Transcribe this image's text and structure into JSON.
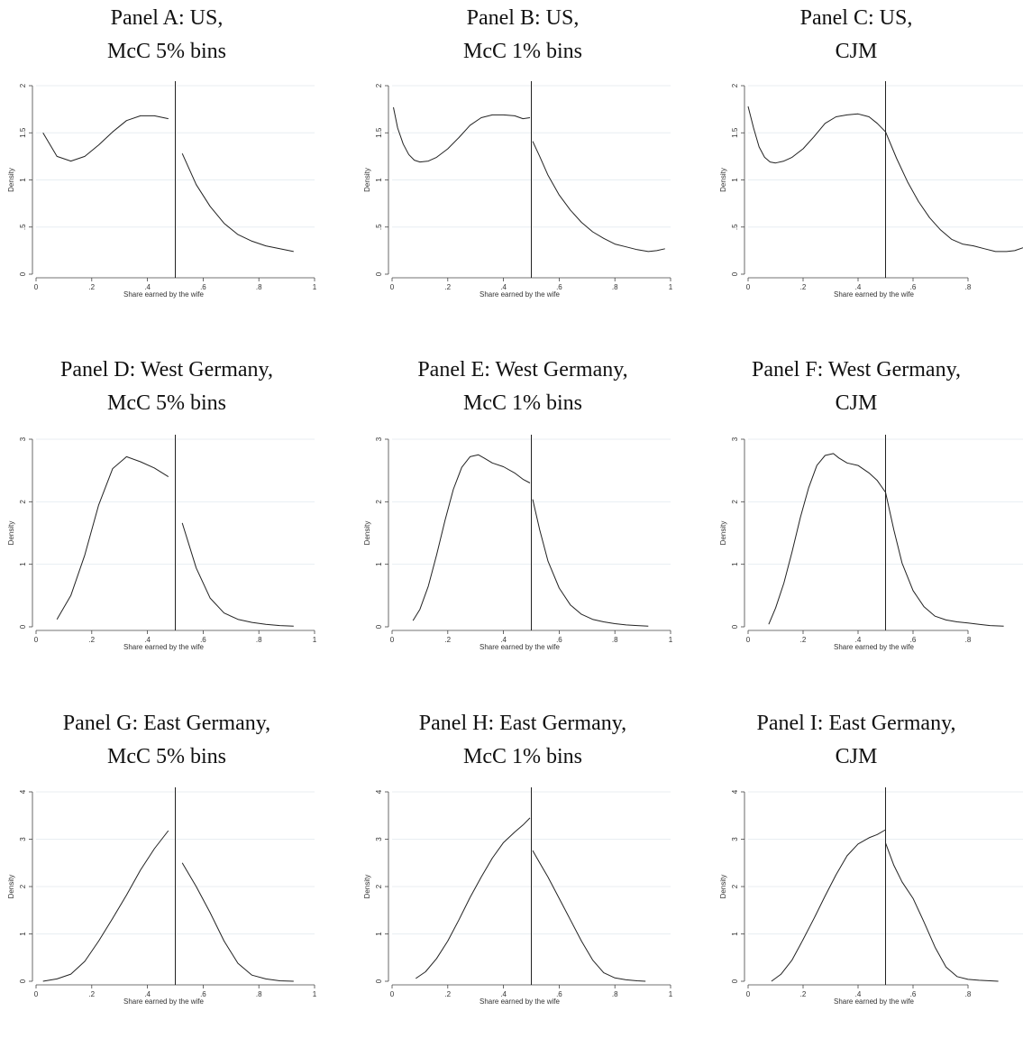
{
  "panels": [
    {
      "title_line1": "Panel A: US,",
      "title_line2": "McC 5% bins"
    },
    {
      "title_line1": "Panel B: US,",
      "title_line2": "McC 1% bins"
    },
    {
      "title_line1": "Panel C: US,",
      "title_line2": "CJM"
    },
    {
      "title_line1": "Panel D: West Germany,",
      "title_line2": "McC 5% bins"
    },
    {
      "title_line1": "Panel E: West Germany,",
      "title_line2": "McC 1% bins"
    },
    {
      "title_line1": "Panel F: West Germany,",
      "title_line2": "CJM"
    },
    {
      "title_line1": "Panel G: East Germany,",
      "title_line2": "McC 5% bins"
    },
    {
      "title_line1": "Panel H: East Germany,",
      "title_line2": "McC 1% bins"
    },
    {
      "title_line1": "Panel I: East Germany,",
      "title_line2": "CJM"
    }
  ],
  "chart_data": [
    {
      "type": "line",
      "title": "Panel A: US, McC 5% bins",
      "xlabel": "Share earned by the wife",
      "ylabel": "Density",
      "xlim": [
        0,
        1
      ],
      "ylim": [
        0,
        2
      ],
      "xticks": [
        "0",
        ".2",
        ".4",
        ".6",
        ".8",
        "1"
      ],
      "yticks": [
        "0",
        ".5",
        "1",
        "1.5",
        "2"
      ],
      "vline": 0.5,
      "grid": true,
      "series": [
        {
          "x": [
            0.025,
            0.075,
            0.125,
            0.175,
            0.225,
            0.275,
            0.325,
            0.375,
            0.425,
            0.475
          ],
          "y": [
            1.5,
            1.25,
            1.2,
            1.25,
            1.37,
            1.51,
            1.63,
            1.68,
            1.68,
            1.65
          ]
        },
        {
          "x": [
            0.525,
            0.575,
            0.625,
            0.675,
            0.725,
            0.775,
            0.825,
            0.875,
            0.925
          ],
          "y": [
            1.28,
            0.95,
            0.72,
            0.54,
            0.42,
            0.35,
            0.3,
            0.27,
            0.24
          ]
        }
      ]
    },
    {
      "type": "line",
      "title": "Panel B: US, McC 1% bins",
      "xlabel": "Share earned by the wife",
      "ylabel": "Density",
      "xlim": [
        0,
        1
      ],
      "ylim": [
        0,
        2
      ],
      "xticks": [
        "0",
        ".2",
        ".4",
        ".6",
        ".8",
        "1"
      ],
      "yticks": [
        "0",
        ".5",
        "1",
        "1.5",
        "2"
      ],
      "vline": 0.5,
      "grid": true,
      "series": [
        {
          "x": [
            0.005,
            0.02,
            0.04,
            0.06,
            0.08,
            0.1,
            0.13,
            0.16,
            0.2,
            0.24,
            0.28,
            0.32,
            0.36,
            0.4,
            0.44,
            0.47,
            0.495
          ],
          "y": [
            1.77,
            1.55,
            1.38,
            1.27,
            1.21,
            1.19,
            1.2,
            1.24,
            1.33,
            1.45,
            1.58,
            1.66,
            1.69,
            1.69,
            1.68,
            1.65,
            1.66
          ]
        },
        {
          "x": [
            0.505,
            0.53,
            0.56,
            0.6,
            0.64,
            0.68,
            0.72,
            0.76,
            0.8,
            0.84,
            0.88,
            0.92,
            0.95,
            0.98
          ],
          "y": [
            1.41,
            1.25,
            1.05,
            0.84,
            0.68,
            0.55,
            0.45,
            0.38,
            0.32,
            0.29,
            0.26,
            0.24,
            0.25,
            0.27
          ]
        }
      ]
    },
    {
      "type": "line",
      "title": "Panel C: US, CJM",
      "xlabel": "Share earned by the wife",
      "ylabel": "Density",
      "xlim": [
        0,
        1
      ],
      "ylim": [
        0,
        2
      ],
      "xticks": [
        "0",
        ".2",
        ".4",
        ".6",
        ".8"
      ],
      "yticks": [
        "0",
        ".5",
        "1",
        "1.5",
        "2"
      ],
      "vline": 0.5,
      "grid": true,
      "series": [
        {
          "x": [
            0.0,
            0.02,
            0.04,
            0.06,
            0.08,
            0.1,
            0.13,
            0.16,
            0.2,
            0.24,
            0.28,
            0.32,
            0.36,
            0.4,
            0.44,
            0.47,
            0.5
          ],
          "y": [
            1.78,
            1.55,
            1.35,
            1.24,
            1.19,
            1.18,
            1.2,
            1.24,
            1.33,
            1.46,
            1.6,
            1.67,
            1.69,
            1.7,
            1.67,
            1.6,
            1.51
          ]
        },
        {
          "x": [
            0.5,
            0.54,
            0.58,
            0.62,
            0.66,
            0.7,
            0.74,
            0.78,
            0.82,
            0.86,
            0.9,
            0.94,
            0.97,
            1.0
          ],
          "y": [
            1.51,
            1.23,
            0.98,
            0.77,
            0.6,
            0.47,
            0.37,
            0.32,
            0.3,
            0.27,
            0.24,
            0.24,
            0.25,
            0.28
          ]
        }
      ]
    },
    {
      "type": "line",
      "title": "Panel D: West Germany, McC 5% bins",
      "xlabel": "Share earned by the wife",
      "ylabel": "Density",
      "xlim": [
        0,
        1
      ],
      "ylim": [
        0,
        3
      ],
      "xticks": [
        "0",
        ".2",
        ".4",
        ".6",
        ".8",
        "1"
      ],
      "yticks": [
        "0",
        "1",
        "2",
        "3"
      ],
      "vline": 0.5,
      "grid": true,
      "series": [
        {
          "x": [
            0.075,
            0.125,
            0.175,
            0.225,
            0.275,
            0.325,
            0.375,
            0.425,
            0.475
          ],
          "y": [
            0.12,
            0.5,
            1.15,
            1.95,
            2.53,
            2.72,
            2.64,
            2.54,
            2.4
          ]
        },
        {
          "x": [
            0.525,
            0.575,
            0.625,
            0.675,
            0.725,
            0.775,
            0.825,
            0.875,
            0.925
          ],
          "y": [
            1.66,
            0.94,
            0.46,
            0.22,
            0.12,
            0.07,
            0.04,
            0.02,
            0.01
          ]
        }
      ]
    },
    {
      "type": "line",
      "title": "Panel E: West Germany, McC 1% bins",
      "xlabel": "Share earned by the wife",
      "ylabel": "Density",
      "xlim": [
        0,
        1
      ],
      "ylim": [
        0,
        3
      ],
      "xticks": [
        "0",
        ".2",
        ".4",
        ".6",
        ".8",
        "1"
      ],
      "yticks": [
        "0",
        "1",
        "2",
        "3"
      ],
      "vline": 0.5,
      "grid": true,
      "series": [
        {
          "x": [
            0.075,
            0.1,
            0.13,
            0.16,
            0.19,
            0.22,
            0.25,
            0.28,
            0.31,
            0.33,
            0.36,
            0.4,
            0.44,
            0.47,
            0.495
          ],
          "y": [
            0.1,
            0.28,
            0.65,
            1.15,
            1.7,
            2.2,
            2.55,
            2.72,
            2.75,
            2.7,
            2.62,
            2.56,
            2.46,
            2.36,
            2.3
          ]
        },
        {
          "x": [
            0.505,
            0.53,
            0.56,
            0.6,
            0.64,
            0.68,
            0.72,
            0.76,
            0.8,
            0.84,
            0.88,
            0.92
          ],
          "y": [
            2.04,
            1.55,
            1.05,
            0.62,
            0.35,
            0.2,
            0.12,
            0.08,
            0.05,
            0.03,
            0.02,
            0.01
          ]
        }
      ]
    },
    {
      "type": "line",
      "title": "Panel F: West Germany, CJM",
      "xlabel": "Share earned by the wife",
      "ylabel": "Density",
      "xlim": [
        0,
        1
      ],
      "ylim": [
        0,
        3
      ],
      "xticks": [
        "0",
        ".2",
        ".4",
        ".6",
        ".8"
      ],
      "yticks": [
        "0",
        "1",
        "2",
        "3"
      ],
      "vline": 0.5,
      "grid": true,
      "series": [
        {
          "x": [
            0.075,
            0.1,
            0.13,
            0.16,
            0.19,
            0.22,
            0.25,
            0.28,
            0.31,
            0.33,
            0.36,
            0.4,
            0.44,
            0.47,
            0.5,
            0.53,
            0.56,
            0.6,
            0.64,
            0.68,
            0.72,
            0.76,
            0.8,
            0.84,
            0.88,
            0.93
          ],
          "y": [
            0.04,
            0.3,
            0.7,
            1.2,
            1.75,
            2.22,
            2.58,
            2.74,
            2.77,
            2.7,
            2.62,
            2.58,
            2.46,
            2.34,
            2.15,
            1.55,
            1.02,
            0.58,
            0.32,
            0.17,
            0.11,
            0.08,
            0.06,
            0.04,
            0.02,
            0.01
          ]
        }
      ]
    },
    {
      "type": "line",
      "title": "Panel G: East Germany, McC 5% bins",
      "xlabel": "Share earned by the wife",
      "ylabel": "Density",
      "xlim": [
        0,
        1
      ],
      "ylim": [
        0,
        4
      ],
      "xticks": [
        "0",
        ".2",
        ".4",
        ".6",
        ".8",
        "1"
      ],
      "yticks": [
        "0",
        "1",
        "2",
        "3",
        "4"
      ],
      "vline": 0.5,
      "grid": true,
      "series": [
        {
          "x": [
            0.025,
            0.075,
            0.125,
            0.175,
            0.225,
            0.275,
            0.325,
            0.375,
            0.425,
            0.475
          ],
          "y": [
            0.0,
            0.05,
            0.15,
            0.42,
            0.85,
            1.33,
            1.82,
            2.35,
            2.8,
            3.18
          ]
        },
        {
          "x": [
            0.525,
            0.575,
            0.625,
            0.675,
            0.725,
            0.775,
            0.825,
            0.875,
            0.925
          ],
          "y": [
            2.5,
            2.0,
            1.45,
            0.85,
            0.38,
            0.13,
            0.05,
            0.01,
            0.0
          ]
        }
      ]
    },
    {
      "type": "line",
      "title": "Panel H: East Germany, McC 1% bins",
      "xlabel": "Share earned by the wife",
      "ylabel": "Density",
      "xlim": [
        0,
        1
      ],
      "ylim": [
        0,
        4
      ],
      "xticks": [
        "0",
        ".2",
        ".4",
        ".6",
        ".8",
        "1"
      ],
      "yticks": [
        "0",
        "1",
        "2",
        "3",
        "4"
      ],
      "vline": 0.5,
      "grid": true,
      "series": [
        {
          "x": [
            0.085,
            0.12,
            0.16,
            0.2,
            0.24,
            0.28,
            0.32,
            0.36,
            0.4,
            0.44,
            0.47,
            0.495
          ],
          "y": [
            0.06,
            0.2,
            0.48,
            0.85,
            1.3,
            1.77,
            2.2,
            2.6,
            2.93,
            3.15,
            3.3,
            3.45
          ]
        },
        {
          "x": [
            0.505,
            0.53,
            0.56,
            0.6,
            0.64,
            0.68,
            0.72,
            0.76,
            0.8,
            0.84,
            0.88,
            0.91
          ],
          "y": [
            2.76,
            2.5,
            2.2,
            1.75,
            1.3,
            0.85,
            0.45,
            0.18,
            0.07,
            0.03,
            0.01,
            0.0
          ]
        }
      ]
    },
    {
      "type": "line",
      "title": "Panel I: East Germany, CJM",
      "xlabel": "Share earned by the wife",
      "ylabel": "Density",
      "xlim": [
        0,
        1
      ],
      "ylim": [
        0,
        4
      ],
      "xticks": [
        "0",
        ".2",
        ".4",
        ".6",
        ".8"
      ],
      "yticks": [
        "0",
        "1",
        "2",
        "3",
        "4"
      ],
      "vline": 0.5,
      "grid": true,
      "series": [
        {
          "x": [
            0.085,
            0.12,
            0.16,
            0.2,
            0.24,
            0.28,
            0.32,
            0.36,
            0.4,
            0.44,
            0.47,
            0.5
          ],
          "y": [
            0.0,
            0.15,
            0.45,
            0.88,
            1.33,
            1.8,
            2.25,
            2.65,
            2.9,
            3.03,
            3.1,
            3.2
          ]
        },
        {
          "x": [
            0.5,
            0.53,
            0.56,
            0.6,
            0.64,
            0.68,
            0.72,
            0.76,
            0.8,
            0.84,
            0.88,
            0.91
          ],
          "y": [
            2.92,
            2.45,
            2.1,
            1.75,
            1.25,
            0.72,
            0.3,
            0.1,
            0.04,
            0.02,
            0.01,
            0.0
          ]
        }
      ]
    }
  ]
}
